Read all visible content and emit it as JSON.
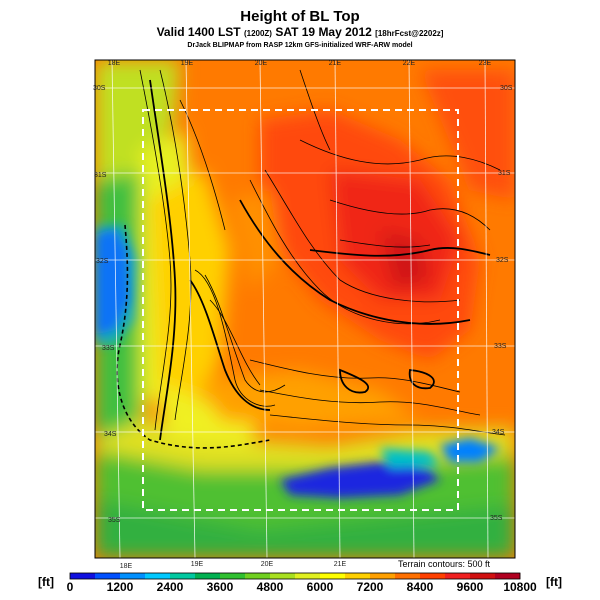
{
  "header": {
    "title": "Height of BL Top",
    "valid_main": "Valid 1400 LST",
    "valid_small": "(1200Z)",
    "valid_date": "SAT 19 May 2012",
    "valid_fcst": "[18hrFcst@2202z]",
    "subtitle": "DrJack BLIPMAP from RASP 12km GFS-initialized WRF-ARW model"
  },
  "axes": {
    "top_lon": [
      "18E",
      "19E",
      "20E",
      "21E",
      "22E",
      "23E"
    ],
    "bottom_lon": [
      "18E",
      "19E",
      "20E",
      "21E"
    ],
    "right_lat": [
      "30S",
      "31S",
      "32S",
      "33S",
      "34S",
      "35S"
    ],
    "left_lat": [
      "30S",
      "31S",
      "32S",
      "33S",
      "34S",
      "35S"
    ]
  },
  "annotation": {
    "terrain_contours": "Terrain contours: 500 ft"
  },
  "colorbar": {
    "unit": "[ft]",
    "labels": [
      "0",
      "1200",
      "2400",
      "3600",
      "4800",
      "6000",
      "7200",
      "8400",
      "9600",
      "10800"
    ],
    "colors": [
      "#1010e0",
      "#0050ff",
      "#0090ff",
      "#00c8ff",
      "#00c8a0",
      "#00b050",
      "#30c030",
      "#70d020",
      "#a8e020",
      "#e0f020",
      "#ffff00",
      "#ffd000",
      "#ffa000",
      "#ff7000",
      "#ff4000",
      "#f02020",
      "#d01010",
      "#b00020"
    ]
  }
}
